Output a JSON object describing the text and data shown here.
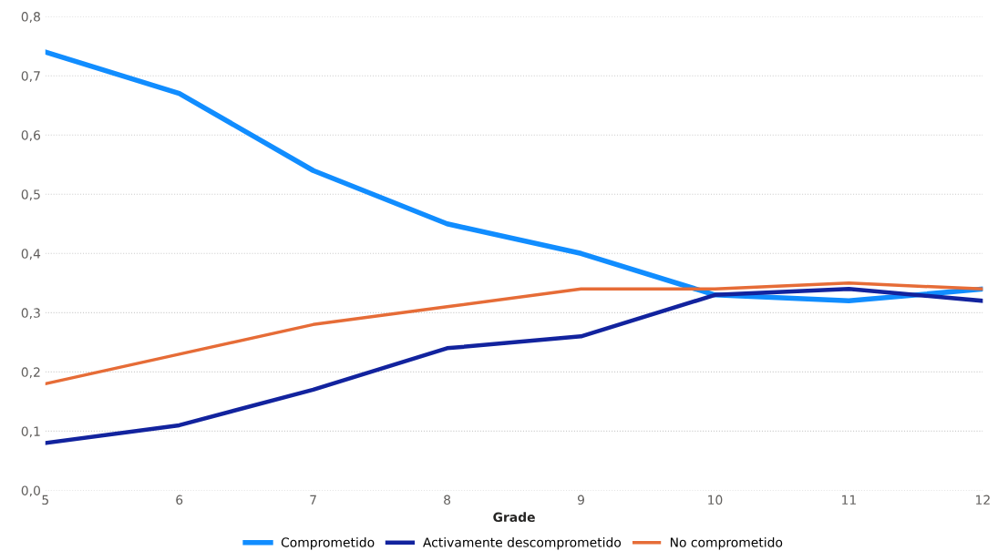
{
  "chart_data": {
    "type": "line",
    "xlabel": "Grade",
    "x": [
      5,
      6,
      7,
      8,
      9,
      10,
      11,
      12
    ],
    "series": [
      {
        "name": "Comprometido",
        "color": "#118dff",
        "values": [
          0.74,
          0.67,
          0.54,
          0.45,
          0.4,
          0.33,
          0.32,
          0.34
        ]
      },
      {
        "name": "Activamente descomprometido",
        "color": "#12239e",
        "values": [
          0.08,
          0.11,
          0.17,
          0.24,
          0.26,
          0.33,
          0.34,
          0.32
        ]
      },
      {
        "name": "No comprometido",
        "color": "#e66c37",
        "values": [
          0.18,
          0.23,
          0.28,
          0.31,
          0.34,
          0.34,
          0.35,
          0.34
        ]
      }
    ],
    "xlim": [
      5,
      12
    ],
    "xticks": [
      5,
      6,
      7,
      8,
      9,
      10,
      11,
      12
    ],
    "ylim": [
      0,
      0.8
    ],
    "yticks": [
      {
        "value": 0,
        "label": "0,0"
      },
      {
        "value": 0.1,
        "label": "0,1"
      },
      {
        "value": 0.2,
        "label": "0,2"
      },
      {
        "value": 0.3,
        "label": "0,3"
      },
      {
        "value": 0.4,
        "label": "0,4"
      },
      {
        "value": 0.5,
        "label": "0,5"
      },
      {
        "value": 0.6,
        "label": "0,6"
      },
      {
        "value": 0.7,
        "label": "0,7"
      },
      {
        "value": 0.8,
        "label": "0,8"
      }
    ],
    "grid": "y",
    "legend": "bottom",
    "marker": "none",
    "line_style": "solid"
  }
}
